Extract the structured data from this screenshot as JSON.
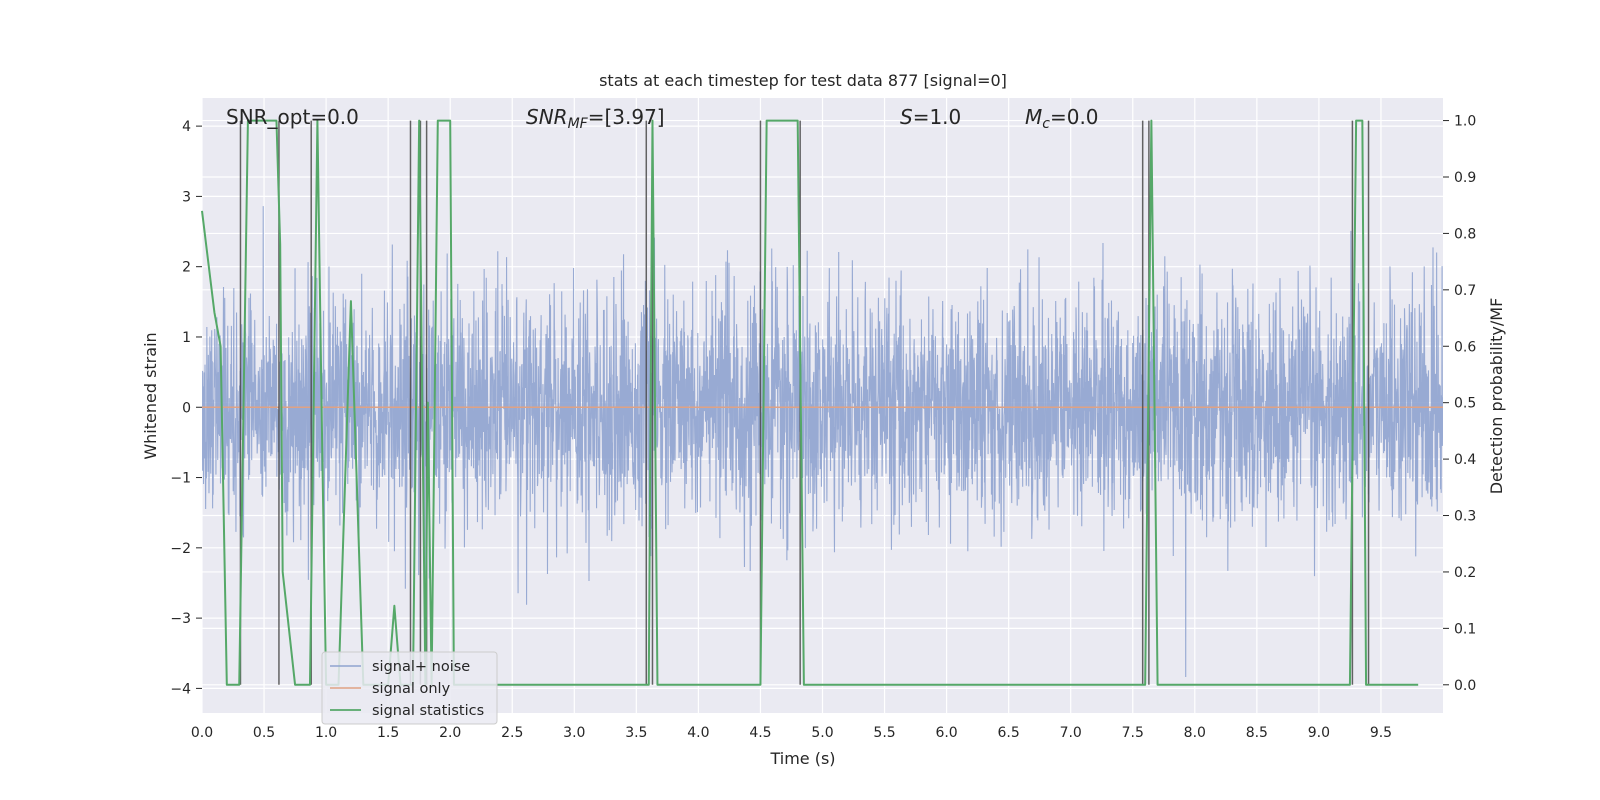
{
  "chart_data": {
    "type": "line",
    "title": "stats at each timestep for test data 877 [signal=0]",
    "xlabel": "Time (s)",
    "ylabel": "Whitened strain",
    "ylabel_right": "Detection probability/MF",
    "xlim": [
      0,
      10
    ],
    "ylim": [
      -4.35,
      4.4
    ],
    "ylim_right": [
      -0.05,
      1.04
    ],
    "x_ticks": [
      0.0,
      0.5,
      1.0,
      1.5,
      2.0,
      2.5,
      3.0,
      3.5,
      4.0,
      4.5,
      5.0,
      5.5,
      6.0,
      6.5,
      7.0,
      7.5,
      8.0,
      8.5,
      9.0,
      9.5
    ],
    "x_tick_labels": [
      "0.0",
      "0.5",
      "1.0",
      "1.5",
      "2.0",
      "2.5",
      "3.0",
      "3.5",
      "4.0",
      "4.5",
      "5.0",
      "5.5",
      "6.0",
      "6.5",
      "7.0",
      "7.5",
      "8.0",
      "8.5",
      "9.0",
      "9.5"
    ],
    "y_ticks": [
      4,
      3,
      2,
      1,
      0,
      -1,
      -2,
      -3,
      -4
    ],
    "y_tick_labels": [
      "4",
      "3",
      "2",
      "1",
      "0",
      "−1",
      "−2",
      "−3",
      "−4"
    ],
    "y_right_ticks": [
      1.0,
      0.9,
      0.8,
      0.7,
      0.6,
      0.5,
      0.4,
      0.3,
      0.2,
      0.1,
      0.0
    ],
    "y_right_tick_labels": [
      "1.0",
      "0.9",
      "0.8",
      "0.7",
      "0.6",
      "0.5",
      "0.4",
      "0.3",
      "0.2",
      "0.1",
      "0.0"
    ],
    "grid": true,
    "legend_position": "lower-left",
    "annotations": {
      "snr_opt": "SNR_opt=0.0",
      "snr_mf_name": "SNR",
      "snr_mf_sub": "MF",
      "snr_mf_value": "=[3.97]",
      "s_name": "S",
      "s_value": "=1.0",
      "mc_name": "M",
      "mc_sub": "c",
      "mc_value": "=0.0"
    },
    "series": [
      {
        "name": "signal+ noise",
        "axis": "left",
        "color": "#8fa3cf",
        "description_type": "noise",
        "amplitude_std": 0.8,
        "x_range": [
          0,
          10
        ]
      },
      {
        "name": "signal only",
        "axis": "left",
        "color": "#e0a283",
        "x": [
          0,
          10
        ],
        "y": [
          0,
          0
        ]
      },
      {
        "name": "signal statistics",
        "axis": "right",
        "color": "#55a868",
        "x": [
          0.0,
          0.05,
          0.1,
          0.15,
          0.2,
          0.3,
          0.37,
          0.6,
          0.63,
          0.65,
          0.75,
          0.87,
          0.93,
          0.97,
          1.0,
          1.1,
          1.2,
          1.3,
          1.4,
          1.5,
          1.55,
          1.6,
          1.7,
          1.75,
          1.8,
          1.82,
          1.85,
          1.9,
          2.0,
          2.03,
          2.05,
          3.55,
          3.6,
          3.63,
          3.67,
          4.5,
          4.55,
          4.8,
          4.85,
          5.3,
          7.55,
          7.6,
          7.65,
          7.7,
          9.25,
          9.3,
          9.35,
          9.38,
          9.45,
          9.75,
          9.8
        ],
        "y": [
          0.84,
          0.75,
          0.66,
          0.6,
          0.0,
          0.0,
          1.0,
          1.0,
          0.78,
          0.2,
          0.0,
          0.0,
          1.0,
          0.4,
          0.0,
          0.0,
          0.68,
          0.0,
          0.0,
          0.0,
          0.14,
          0.0,
          0.0,
          1.0,
          0.0,
          0.5,
          0.0,
          1.0,
          1.0,
          0.0,
          0.0,
          0.0,
          0.0,
          1.0,
          0.0,
          0.0,
          1.0,
          1.0,
          0.0,
          0.0,
          0.0,
          0.0,
          1.0,
          0.0,
          0.0,
          1.0,
          1.0,
          0.0,
          0.0,
          0.0,
          0.0
        ]
      }
    ],
    "vertical_markers": [
      0.31,
      0.62,
      0.88,
      1.68,
      1.76,
      1.81,
      3.58,
      3.63,
      4.5,
      4.82,
      7.58,
      7.63,
      9.27,
      9.4
    ]
  }
}
